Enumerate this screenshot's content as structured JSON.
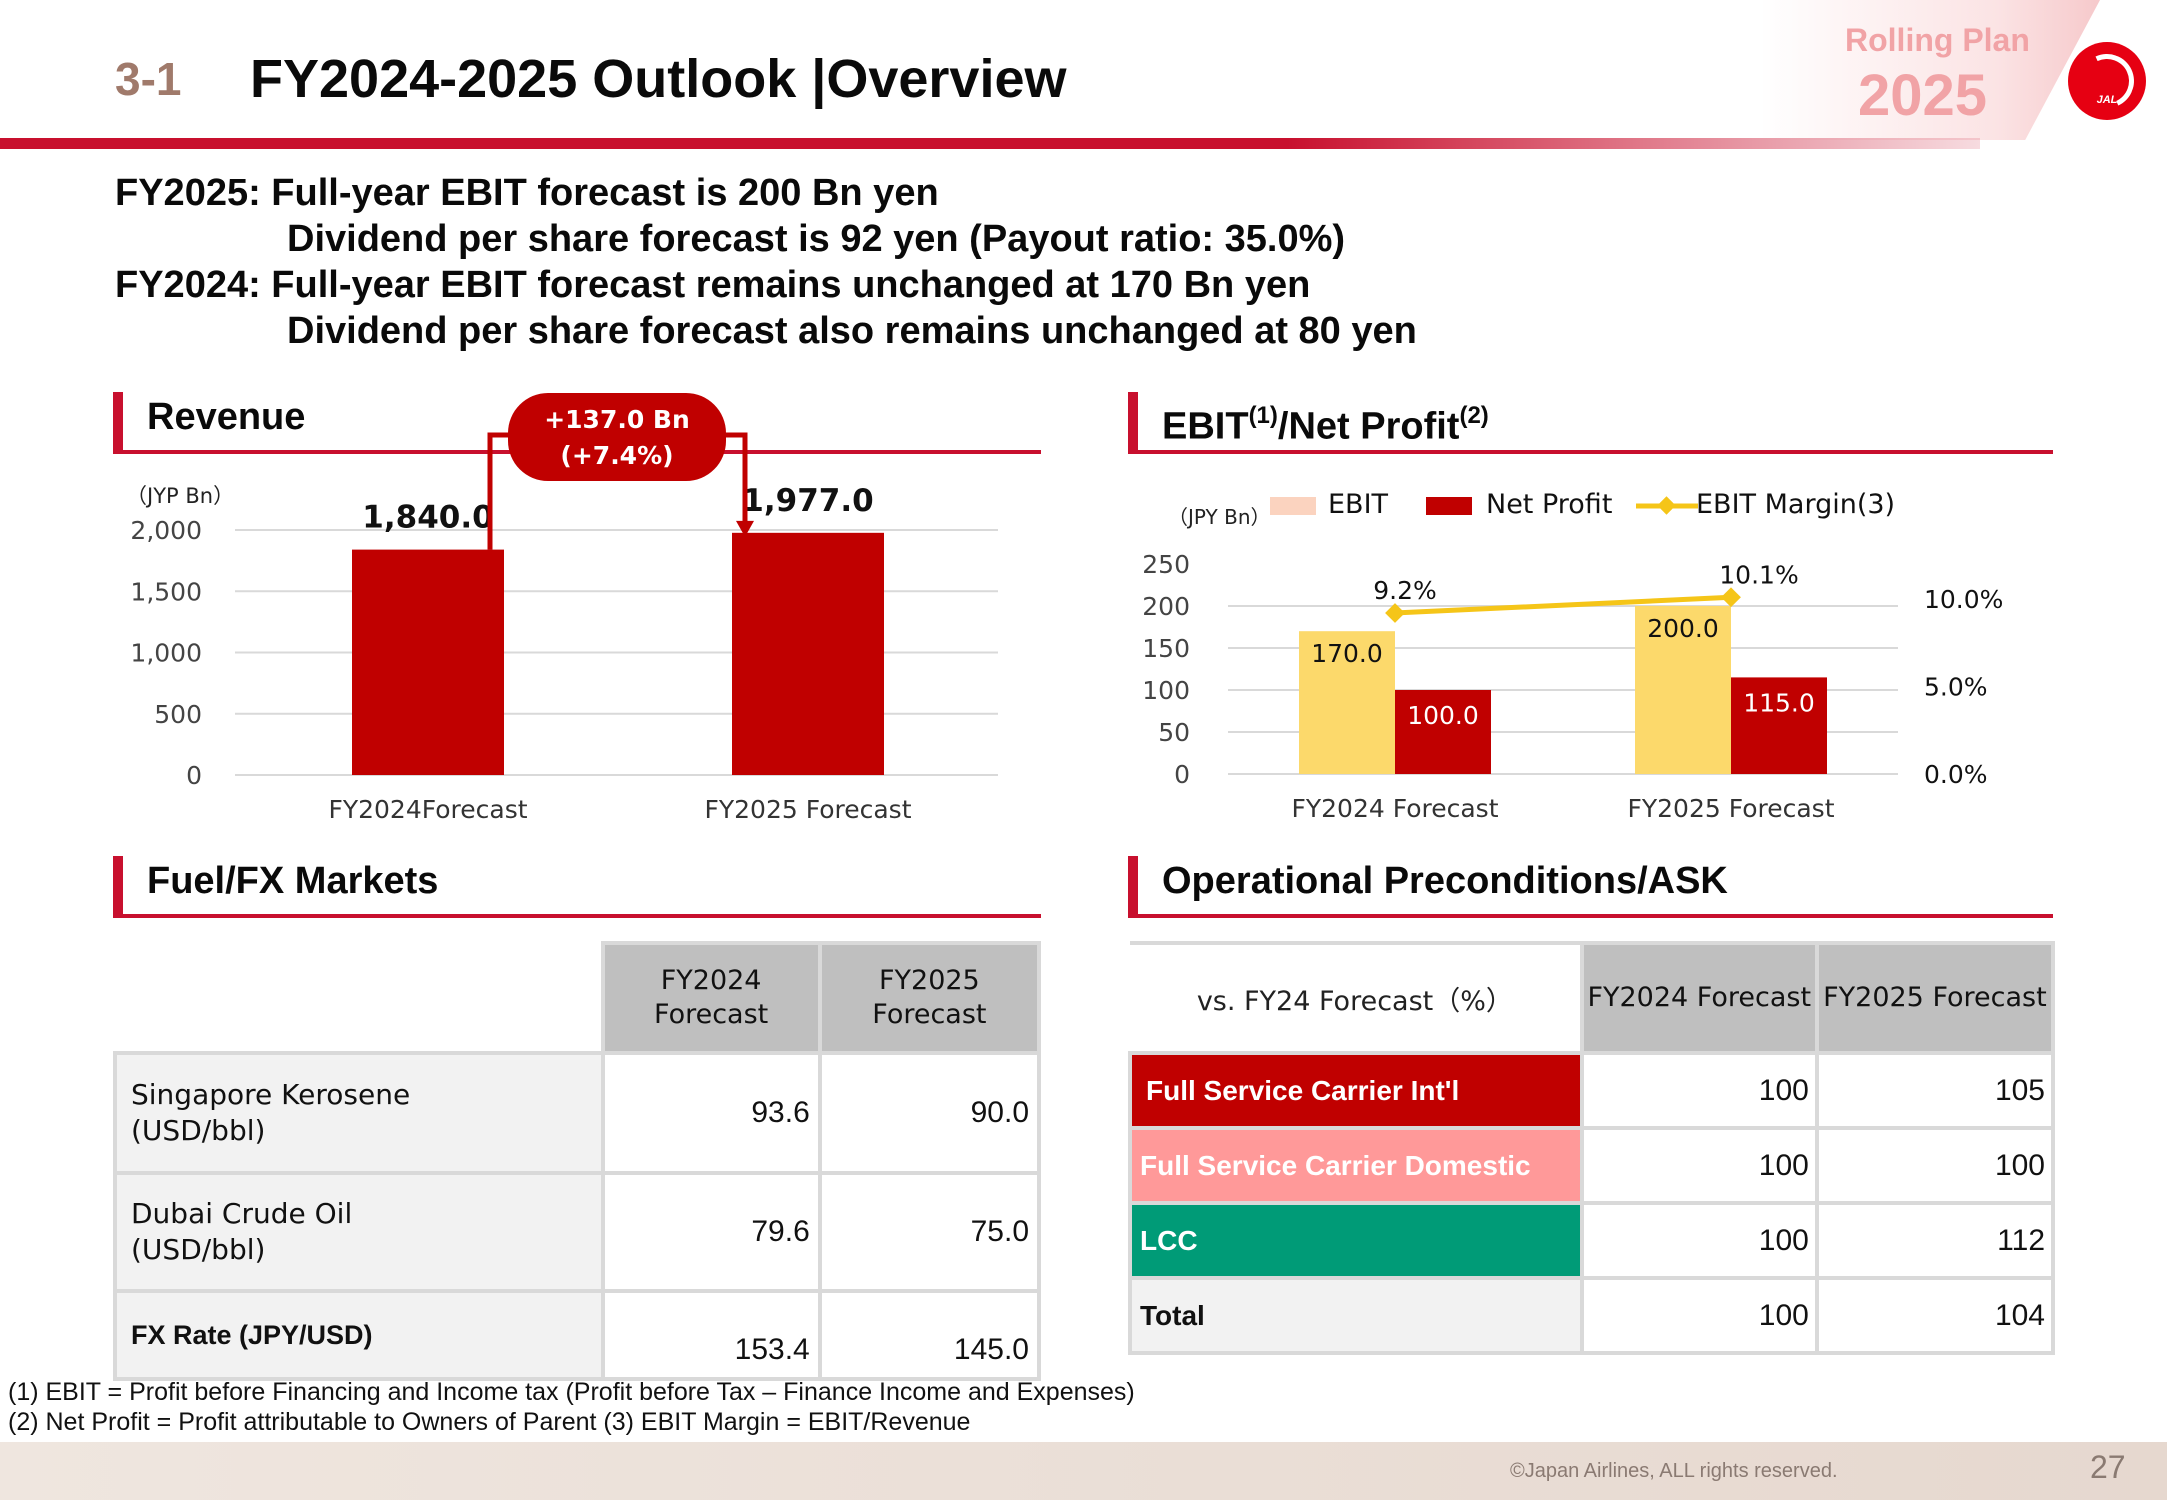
{
  "header": {
    "section_number": "3-1",
    "title": "FY2024-2025 Outlook |Overview",
    "rolling_label": "Rolling Plan",
    "rolling_year": "2025",
    "logo_text": "JAL",
    "accent_color": "#c8102e"
  },
  "summary": [
    "FY2025: Full-year EBIT forecast is 200 Bn yen",
    "Dividend per share forecast is 92 yen (Payout ratio: 35.0%)",
    "FY2024: Full-year EBIT forecast remains unchanged at 170 Bn yen",
    "Dividend per share forecast also remains unchanged at 80 yen"
  ],
  "revenue_section": {
    "title": "Revenue",
    "unit": "（JYP Bn）",
    "change_line1": "+137.0 Bn",
    "change_line2": "(+7.4%)"
  },
  "ebit_section": {
    "title": "EBIT",
    "sup1": "(1)",
    "title2": "/Net Profit",
    "sup2": "(2)",
    "unit": "（JPY Bn）"
  },
  "fuel_section": {
    "title": "Fuel/FX Markets",
    "headers": [
      "FY2024 Forecast",
      "FY2025 Forecast"
    ],
    "rows": [
      {
        "label_line1": "Singapore Kerosene",
        "label_line2": "(USD/bbl)",
        "fy2024": "93.6",
        "fy2025": "90.0"
      },
      {
        "label_line1": "Dubai Crude Oil",
        "label_line2": "(USD/bbl)",
        "fy2024": "79.6",
        "fy2025": "75.0"
      },
      {
        "label_line1": "FX Rate (JPY/USD)",
        "label_line2": "",
        "fy2024": "153.4",
        "fy2025": "145.0"
      }
    ]
  },
  "ops_section": {
    "title": "Operational Preconditions/ASK",
    "caption": "vs. FY24 Forecast（%）",
    "headers": [
      "FY2024 Forecast",
      "FY2025 Forecast"
    ],
    "rows": [
      {
        "label": "Full Service Carrier Int'l",
        "fy2024": "100",
        "fy2025": "105",
        "color": "#c00000"
      },
      {
        "label": "Full Service Carrier Domestic",
        "fy2024": "100",
        "fy2025": "100",
        "color": "#ff9999"
      },
      {
        "label": "LCC",
        "fy2024": "100",
        "fy2025": "112",
        "color": "#009b77"
      },
      {
        "label": "Total",
        "fy2024": "100",
        "fy2025": "104",
        "color": "#f2f2f2"
      }
    ]
  },
  "chart_data": [
    {
      "type": "bar",
      "title": "Revenue",
      "ylabel": "（JYP Bn）",
      "categories": [
        "FY2024Forecast",
        "FY2025 Forecast"
      ],
      "values": [
        1840.0,
        1977.0
      ],
      "value_labels": [
        "1,840.0",
        "1,977.0"
      ],
      "ylim": [
        0,
        2000
      ],
      "yticks": [
        0,
        500,
        1000,
        1500,
        2000
      ],
      "ytick_labels": [
        "0",
        "500",
        "1,000",
        "1,500",
        "2,000"
      ],
      "color": "#c00000",
      "grid": true
    },
    {
      "type": "bar",
      "title": "EBIT/Net Profit",
      "ylabel": "（JPY Bn）",
      "categories": [
        "FY2024 Forecast",
        "FY2025 Forecast"
      ],
      "series": [
        {
          "name": "EBIT",
          "values": [
            170.0,
            200.0
          ],
          "labels": [
            "170.0",
            "200.0"
          ],
          "color": "#fcd96b"
        },
        {
          "name": "Net Profit",
          "values": [
            100.0,
            115.0
          ],
          "labels": [
            "100.0",
            "115.0"
          ],
          "color": "#c00000"
        }
      ],
      "line_series": {
        "name": "EBIT Margin(3)",
        "values": [
          9.2,
          10.1
        ],
        "labels": [
          "9.2%",
          "10.1%"
        ],
        "color": "#f5c518",
        "axis": "right"
      },
      "ylim": [
        0,
        250
      ],
      "yticks": [
        0,
        50,
        100,
        150,
        200,
        250
      ],
      "ytick_labels": [
        "0",
        "50",
        "100",
        "150",
        "200",
        "250"
      ],
      "y2lim": [
        0,
        12
      ],
      "y2ticks": [
        0,
        5,
        10
      ],
      "y2tick_labels": [
        "0.0%",
        "5.0%",
        "10.0%"
      ],
      "legend": "top",
      "legend_colors": [
        "#fbd3bf",
        "#c00000",
        "#f5c518"
      ],
      "grid": true
    }
  ],
  "footnotes": [
    "(1) EBIT = Profit before Financing and Income tax (Profit before Tax – Finance Income and Expenses)",
    "(2) Net Profit = Profit attributable to Owners of Parent  (3) EBIT Margin = EBIT/Revenue"
  ],
  "footer": {
    "copyright": "©Japan Airlines, ALL rights reserved.",
    "page_number": "27"
  }
}
